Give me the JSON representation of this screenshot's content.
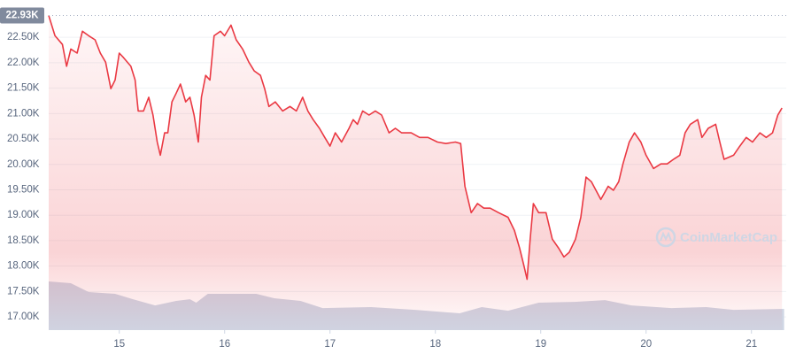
{
  "chart_data": {
    "type": "line",
    "watermark": "CoinMarketCap",
    "max_label": {
      "value": 22930,
      "label": "22.93K"
    },
    "xlim": [
      14.33,
      21.33
    ],
    "xticks": [
      15,
      16,
      17,
      18,
      19,
      20,
      21
    ],
    "ylim": [
      16740,
      23060
    ],
    "yticks": [
      {
        "value": 17000,
        "label": "17.00K"
      },
      {
        "value": 17500,
        "label": "17.50K"
      },
      {
        "value": 18000,
        "label": "18.00K"
      },
      {
        "value": 18500,
        "label": "18.50K"
      },
      {
        "value": 19000,
        "label": "19.00K"
      },
      {
        "value": 19500,
        "label": "19.50K"
      },
      {
        "value": 20000,
        "label": "20.00K"
      },
      {
        "value": 20500,
        "label": "20.50K"
      },
      {
        "value": 21000,
        "label": "21.00K"
      },
      {
        "value": 21500,
        "label": "21.50K"
      },
      {
        "value": 22000,
        "label": "22.00K"
      },
      {
        "value": 22500,
        "label": "22.50K"
      }
    ],
    "grid": true,
    "x": [
      14.33,
      14.39,
      14.46,
      14.5,
      14.54,
      14.6,
      14.65,
      14.71,
      14.77,
      14.82,
      14.87,
      14.92,
      14.96,
      15.0,
      15.04,
      15.11,
      15.15,
      15.18,
      15.23,
      15.28,
      15.32,
      15.36,
      15.39,
      15.43,
      15.46,
      15.5,
      15.54,
      15.58,
      15.63,
      15.67,
      15.71,
      15.75,
      15.78,
      15.82,
      15.86,
      15.9,
      15.96,
      16.0,
      16.06,
      16.11,
      16.17,
      16.23,
      16.28,
      16.34,
      16.38,
      16.42,
      16.48,
      16.55,
      16.62,
      16.68,
      16.74,
      16.79,
      16.84,
      16.9,
      16.95,
      17.0,
      17.05,
      17.11,
      17.18,
      17.22,
      17.26,
      17.31,
      17.37,
      17.43,
      17.49,
      17.56,
      17.62,
      17.68,
      17.77,
      17.85,
      17.93,
      18.02,
      18.1,
      18.19,
      18.24,
      18.28,
      18.34,
      18.4,
      18.46,
      18.52,
      18.6,
      18.69,
      18.75,
      18.8,
      18.84,
      18.87,
      18.9,
      18.93,
      18.98,
      19.05,
      19.11,
      19.17,
      19.22,
      19.27,
      19.33,
      19.38,
      19.43,
      19.48,
      19.57,
      19.64,
      19.69,
      19.74,
      19.78,
      19.84,
      19.89,
      19.95,
      20.0,
      20.07,
      20.14,
      20.2,
      20.26,
      20.32,
      20.37,
      20.42,
      20.49,
      20.53,
      20.59,
      20.66,
      20.7,
      20.74,
      20.83,
      20.89,
      20.95,
      21.01,
      21.08,
      21.14,
      21.2,
      21.25,
      21.29
    ],
    "series": [
      {
        "color": "#ea3943",
        "values": [
          22930,
          22530,
          22360,
          21930,
          22270,
          22190,
          22620,
          22530,
          22450,
          22190,
          22010,
          21490,
          21660,
          22190,
          22100,
          21930,
          21660,
          21050,
          21050,
          21320,
          20970,
          20440,
          20180,
          20620,
          20620,
          21230,
          21400,
          21580,
          21230,
          21320,
          20970,
          20440,
          21320,
          21750,
          21660,
          22530,
          22620,
          22530,
          22740,
          22450,
          22270,
          22010,
          21840,
          21750,
          21490,
          21140,
          21230,
          21050,
          21140,
          21050,
          21320,
          21050,
          20880,
          20710,
          20530,
          20360,
          20620,
          20440,
          20710,
          20880,
          20790,
          21050,
          20970,
          21050,
          20970,
          20620,
          20710,
          20620,
          20620,
          20530,
          20530,
          20440,
          20410,
          20440,
          20410,
          19570,
          19050,
          19230,
          19140,
          19140,
          19050,
          18960,
          18700,
          18350,
          18010,
          17740,
          18530,
          19230,
          19050,
          19050,
          18530,
          18350,
          18180,
          18270,
          18530,
          18960,
          19750,
          19660,
          19310,
          19570,
          19490,
          19660,
          20010,
          20440,
          20620,
          20440,
          20180,
          19920,
          20010,
          20010,
          20100,
          20180,
          20620,
          20790,
          20880,
          20530,
          20710,
          20790,
          20440,
          20100,
          20180,
          20360,
          20530,
          20440,
          20620,
          20530,
          20620,
          20970,
          21110
        ]
      }
    ],
    "volume": {
      "color": "#cfd6e4",
      "x": [
        14.33,
        14.54,
        14.71,
        14.96,
        15.13,
        15.34,
        15.54,
        15.67,
        15.73,
        15.84,
        16.3,
        16.47,
        16.72,
        16.93,
        17.39,
        17.81,
        18.23,
        18.44,
        18.69,
        18.98,
        19.32,
        19.61,
        19.86,
        20.24,
        20.57,
        20.83,
        21.31
      ],
      "values": [
        17697,
        17662,
        17488,
        17453,
        17348,
        17226,
        17314,
        17348,
        17279,
        17453,
        17453,
        17366,
        17314,
        17174,
        17192,
        17139,
        17070,
        17192,
        17122,
        17279,
        17296,
        17331,
        17226,
        17174,
        17192,
        17139,
        17157
      ]
    }
  }
}
